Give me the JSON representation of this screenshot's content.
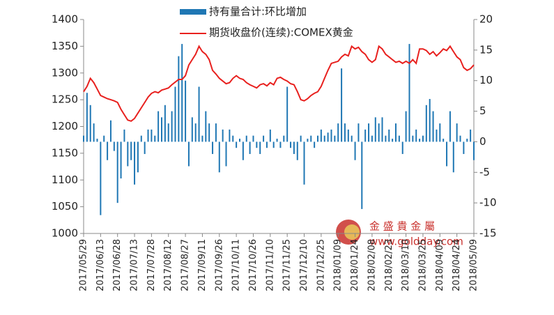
{
  "chart_data": {
    "type": "bar-line",
    "categories": [
      "2017/05/29",
      null,
      null,
      null,
      null,
      "2017/06/13",
      null,
      null,
      null,
      null,
      "2017/06/28",
      null,
      null,
      null,
      null,
      "2017/07/13",
      null,
      null,
      null,
      null,
      "2017/07/28",
      null,
      null,
      null,
      null,
      "2017/08/12",
      null,
      null,
      null,
      null,
      "2017/08/27",
      null,
      null,
      null,
      null,
      "2017/09/11",
      null,
      null,
      null,
      null,
      "2017/09/26",
      null,
      null,
      null,
      null,
      "2017/10/11",
      null,
      null,
      null,
      null,
      "2017/10/26",
      null,
      null,
      null,
      null,
      "2017/11/10",
      null,
      null,
      null,
      null,
      "2017/11/25",
      null,
      null,
      null,
      null,
      "2017/12/10",
      null,
      null,
      null,
      null,
      "2017/12/25",
      null,
      null,
      null,
      null,
      "2018/01/09",
      null,
      null,
      null,
      null,
      "2018/01/24",
      null,
      null,
      null,
      null,
      "2018/02/08",
      null,
      null,
      null,
      null,
      "2018/02/23",
      null,
      null,
      null,
      null,
      "2018/03/10",
      null,
      null,
      null,
      null,
      "2018/03/25",
      null,
      null,
      null,
      null,
      "2018/04/09",
      null,
      null,
      null,
      null,
      "2018/04/24",
      null,
      null,
      null,
      null,
      "2018/05/09"
    ],
    "series": [
      {
        "name": "持有量合计:环比增加",
        "type": "bar",
        "axis": "y2",
        "color": "#1f77b4",
        "values": [
          1,
          8,
          6,
          3,
          0.5,
          -12,
          1,
          -3,
          3.5,
          -1.5,
          -10,
          -6,
          2,
          -4,
          -3,
          -7,
          -5,
          1,
          -2,
          2,
          2,
          1,
          5,
          4,
          6,
          3,
          5,
          9,
          14,
          16,
          10,
          -4,
          4,
          3,
          9,
          1,
          5,
          3,
          -2,
          3,
          -5,
          2,
          -4,
          2,
          1,
          -1,
          0.5,
          -3,
          1,
          -2,
          1,
          -1,
          -2,
          1,
          -1,
          2,
          -1,
          0.5,
          -1,
          1,
          9,
          -1,
          -2,
          -3,
          1,
          -7,
          0.5,
          1,
          -1,
          1,
          2,
          1,
          1.5,
          2,
          1,
          3,
          12,
          3,
          2,
          1,
          -3,
          3,
          -11,
          2,
          3,
          1,
          4,
          3,
          4,
          1,
          2,
          0.5,
          3,
          1,
          -2,
          5,
          16,
          1,
          2,
          0.5,
          1,
          6,
          7,
          5,
          2,
          3,
          0.5,
          -4,
          5,
          -5,
          3,
          1,
          -2,
          0.5,
          2,
          -3
        ]
      },
      {
        "name": "期货收盘价(连续):COMEX黄金",
        "type": "line",
        "axis": "y",
        "color": "#e8201e",
        "values": [
          1265,
          1275,
          1290,
          1282,
          1270,
          1258,
          1255,
          1252,
          1250,
          1248,
          1245,
          1232,
          1222,
          1212,
          1210,
          1215,
          1225,
          1235,
          1245,
          1255,
          1262,
          1265,
          1263,
          1268,
          1270,
          1272,
          1278,
          1283,
          1288,
          1288,
          1295,
          1315,
          1325,
          1335,
          1350,
          1340,
          1335,
          1325,
          1305,
          1298,
          1290,
          1285,
          1280,
          1282,
          1290,
          1295,
          1290,
          1288,
          1282,
          1278,
          1275,
          1272,
          1278,
          1280,
          1276,
          1282,
          1278,
          1290,
          1292,
          1288,
          1285,
          1280,
          1278,
          1265,
          1250,
          1248,
          1252,
          1258,
          1262,
          1265,
          1275,
          1290,
          1305,
          1318,
          1320,
          1322,
          1330,
          1335,
          1332,
          1350,
          1345,
          1348,
          1340,
          1335,
          1325,
          1320,
          1325,
          1350,
          1345,
          1335,
          1330,
          1325,
          1320,
          1322,
          1318,
          1322,
          1318,
          1325,
          1318,
          1345,
          1345,
          1342,
          1335,
          1340,
          1332,
          1338,
          1345,
          1342,
          1350,
          1340,
          1330,
          1325,
          1310,
          1305,
          1308,
          1315
        ]
      }
    ],
    "ylim": [
      1000,
      1400
    ],
    "yticks": [
      1000,
      1050,
      1100,
      1150,
      1200,
      1250,
      1300,
      1350,
      1400
    ],
    "y2lim": [
      -15,
      20
    ],
    "y2ticks": [
      -15,
      -10,
      -5,
      0,
      5,
      10,
      15,
      20
    ]
  },
  "watermark": {
    "brand": "金 盛 貴 金 屬",
    "url": "www.goldday.com"
  }
}
